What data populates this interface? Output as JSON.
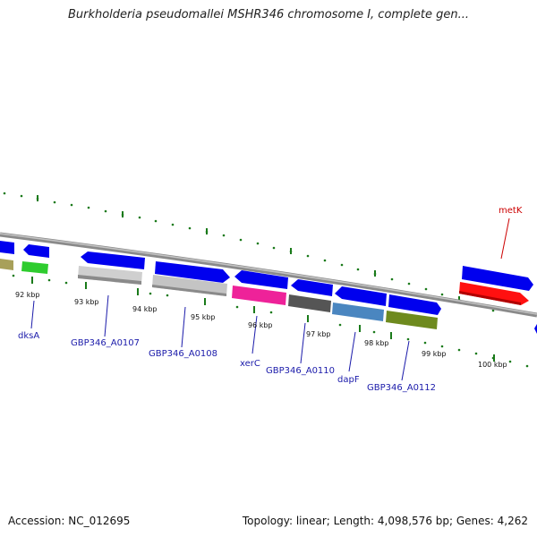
{
  "header": {
    "title": "Burkholderia pseudomallei MSHR346 chromosome I, complete gen..."
  },
  "footer": {
    "accession": "Accession: NC_012695",
    "summary": "Topology: linear; Length: 4,098,576 bp; Genes: 4,262"
  },
  "colors": {
    "strand_blue": "#0000ee",
    "gene_label_blue": "#1a1aaa",
    "highlight_red": "#cc0000",
    "tick_green": "#1a7a1a",
    "backbone_gray": "#8a8a8a"
  },
  "scale": {
    "ticks": [
      "92 kbp",
      "93 kbp",
      "94 kbp",
      "95 kbp",
      "96 kbp",
      "97 kbp",
      "98 kbp",
      "99 kbp",
      "100 kbp"
    ]
  },
  "genes": [
    {
      "name": "dksA",
      "strand": "reverse",
      "color": "#2ecc2e"
    },
    {
      "name": "GBP346_A0107",
      "strand": "reverse",
      "color": "#c8c8c8"
    },
    {
      "name": "GBP346_A0108",
      "strand": "forward",
      "color": "#c8c8c8"
    },
    {
      "name": "xerC",
      "strand": "reverse",
      "color": "#ee2299"
    },
    {
      "name": "GBP346_A0110",
      "strand": "reverse",
      "color": "#555555"
    },
    {
      "name": "dapF",
      "strand": "reverse",
      "color": "#4a86c0"
    },
    {
      "name": "GBP346_A0112",
      "strand": "forward",
      "color": "#6e8a1e"
    },
    {
      "name": "metK",
      "strand": "forward",
      "color": "#ff1010"
    }
  ]
}
